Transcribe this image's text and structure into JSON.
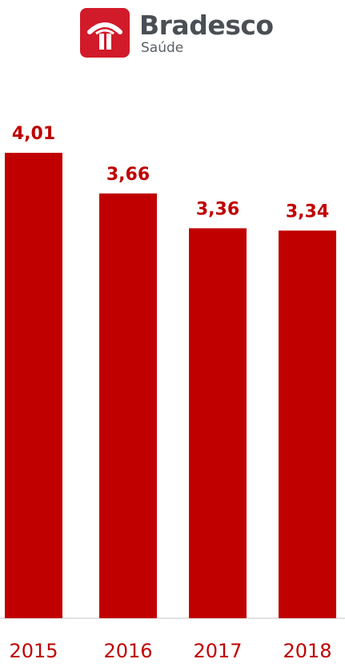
{
  "logo": {
    "name": "Bradesco",
    "sub": "Saúde",
    "brand_color": "#d11a2a"
  },
  "chart_data": {
    "type": "bar",
    "categories": [
      "2015",
      "2016",
      "2017",
      "2018"
    ],
    "values": [
      4.01,
      3.66,
      3.36,
      3.34
    ],
    "value_labels": [
      "4,01",
      "3,66",
      "3,36",
      "3,34"
    ],
    "title": "",
    "xlabel": "",
    "ylabel": "",
    "ylim": [
      0,
      4.5
    ],
    "grid": false,
    "legend": "none",
    "bar_color": "#c00000",
    "label_color": "#c00000"
  }
}
